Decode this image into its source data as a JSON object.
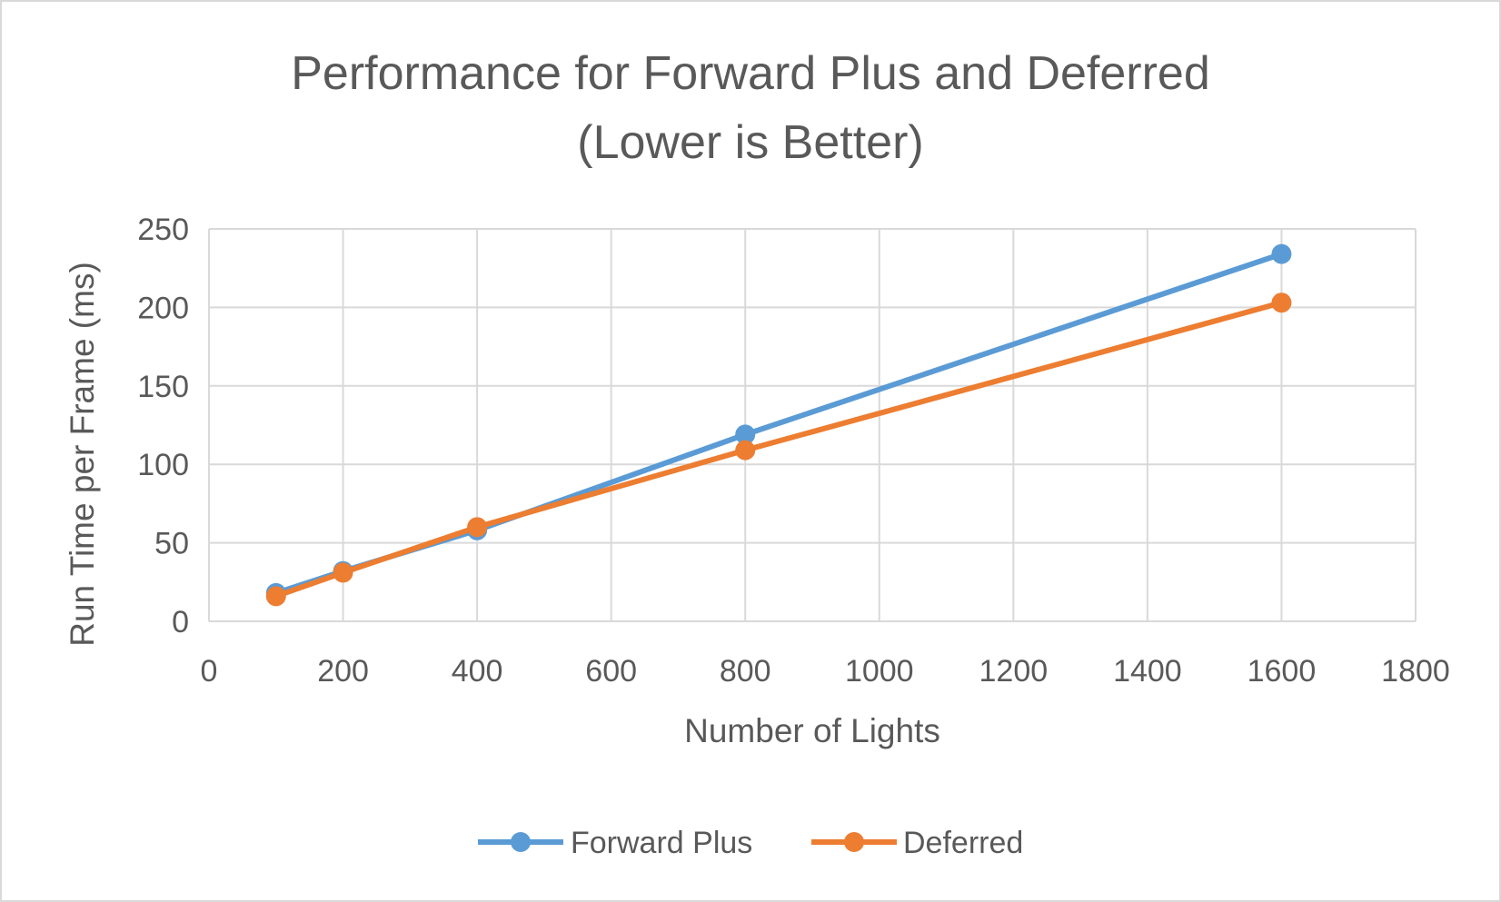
{
  "chart_data": {
    "type": "line",
    "title_lines": [
      "Performance for Forward Plus and Deferred",
      "(Lower is Better)"
    ],
    "xlabel": "Number of Lights",
    "ylabel": "Run Time per Frame (ms)",
    "xlim": [
      0,
      1800
    ],
    "ylim": [
      0,
      250
    ],
    "x_ticks": [
      0,
      200,
      400,
      600,
      800,
      1000,
      1200,
      1400,
      1600,
      1800
    ],
    "y_ticks": [
      0,
      50,
      100,
      150,
      200,
      250
    ],
    "grid": true,
    "legend_position": "bottom",
    "x": [
      100,
      200,
      400,
      800,
      1600
    ],
    "series": [
      {
        "name": "Forward Plus",
        "color": "#5b9bd5",
        "values": [
          18,
          32,
          58,
          119,
          234
        ]
      },
      {
        "name": "Deferred",
        "color": "#ed7d31",
        "values": [
          16,
          31,
          60,
          109,
          203
        ]
      }
    ]
  }
}
